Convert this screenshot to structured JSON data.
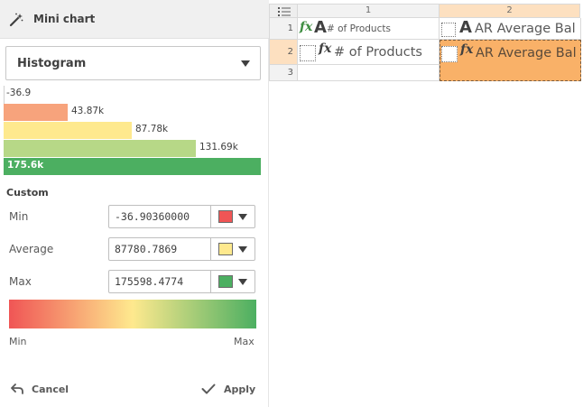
{
  "panel": {
    "title": "Mini chart",
    "chart_type_selected": "Histogram"
  },
  "histogram": {
    "labels": [
      "-36.9",
      "43.87k",
      "87.78k",
      "131.69k",
      "175.6k"
    ],
    "colors": [
      "#f7a37c",
      "#fee98e",
      "#b7d887",
      "#4caf61"
    ]
  },
  "custom": {
    "title": "Custom",
    "rows": [
      {
        "label": "Min",
        "value": "-36.90360000",
        "color": "#f05555"
      },
      {
        "label": "Average",
        "value": "87780.7869",
        "color": "#fee98e"
      },
      {
        "label": "Max",
        "value": "175598.4774",
        "color": "#4caf61"
      }
    ],
    "gradient_colors": [
      "#f05555",
      "#fee98e",
      "#4caf61"
    ],
    "gradient_min_label": "Min",
    "gradient_max_label": "Max"
  },
  "footer": {
    "cancel_label": "Cancel",
    "apply_label": "Apply"
  },
  "grid": {
    "columns": [
      "1",
      "2"
    ],
    "rows": [
      "1",
      "2",
      "3"
    ],
    "cells": {
      "r1c1": "# of Products",
      "r1c2": "AR Average Bal",
      "r2c1": "# of Products",
      "r2c2": "AR Average Bal"
    },
    "fx_symbol": "fx",
    "big_a_symbol": "A",
    "selection_color": "#f9b168"
  }
}
